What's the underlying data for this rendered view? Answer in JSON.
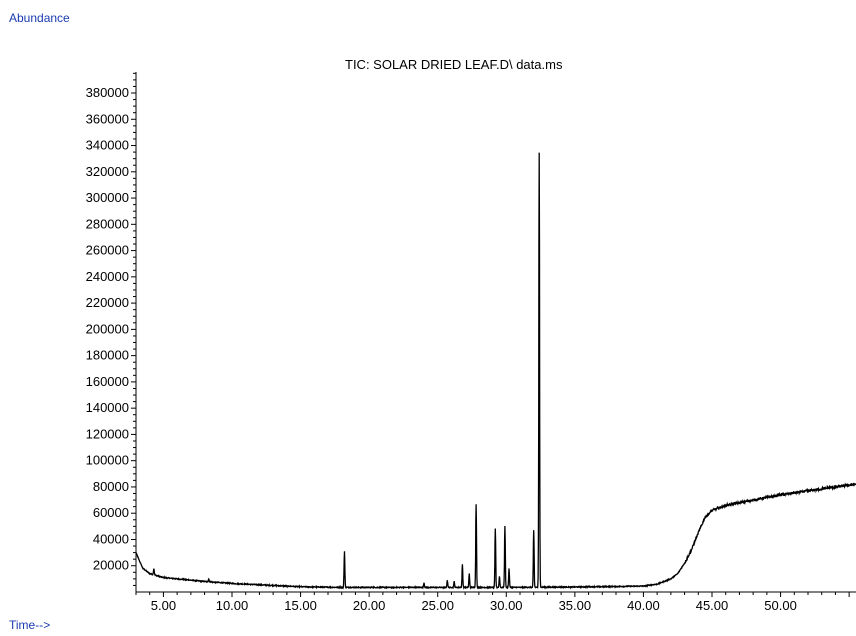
{
  "chart_data": {
    "type": "line",
    "title": "TIC: SOLAR DRIED LEAF.D\\ data.ms",
    "ylabel": "Abundance",
    "xlabel": "Time-->",
    "xlim": [
      3.0,
      55.5
    ],
    "ylim": [
      0,
      396000
    ],
    "x_ticks": [
      "5.00",
      "10.00",
      "15.00",
      "20.00",
      "25.00",
      "30.00",
      "35.00",
      "40.00",
      "45.00",
      "50.00"
    ],
    "y_ticks": [
      "20000",
      "40000",
      "60000",
      "80000",
      "100000",
      "120000",
      "140000",
      "160000",
      "180000",
      "200000",
      "220000",
      "240000",
      "260000",
      "280000",
      "300000",
      "320000",
      "340000",
      "360000",
      "380000"
    ],
    "grid": false,
    "series": [
      {
        "color": "#000000",
        "baseline": [
          [
            3.0,
            30000
          ],
          [
            3.2,
            25000
          ],
          [
            3.5,
            18000
          ],
          [
            4.0,
            14000
          ],
          [
            5.0,
            11000
          ],
          [
            6.0,
            10000
          ],
          [
            8.0,
            8000
          ],
          [
            10.0,
            6500
          ],
          [
            12.0,
            5500
          ],
          [
            15.0,
            4000
          ],
          [
            18.0,
            3500
          ],
          [
            20.0,
            3500
          ],
          [
            25.0,
            3500
          ],
          [
            30.0,
            3500
          ],
          [
            35.0,
            3800
          ],
          [
            38.0,
            4200
          ],
          [
            40.0,
            4500
          ],
          [
            41.0,
            6000
          ],
          [
            42.0,
            10000
          ],
          [
            42.5,
            14000
          ],
          [
            43.0,
            22000
          ],
          [
            43.5,
            32000
          ],
          [
            44.0,
            45000
          ],
          [
            44.5,
            57000
          ],
          [
            45.0,
            62000
          ],
          [
            46.0,
            66000
          ],
          [
            48.0,
            70000
          ],
          [
            50.0,
            74000
          ],
          [
            52.0,
            77000
          ],
          [
            54.0,
            80000
          ],
          [
            55.5,
            82000
          ]
        ],
        "peaks": [
          [
            4.3,
            18000
          ],
          [
            8.3,
            10000
          ],
          [
            18.2,
            31000
          ],
          [
            24.0,
            7000
          ],
          [
            25.7,
            9000
          ],
          [
            26.2,
            8000
          ],
          [
            26.8,
            21000
          ],
          [
            27.3,
            14000
          ],
          [
            27.8,
            67000
          ],
          [
            29.2,
            48000
          ],
          [
            29.5,
            12000
          ],
          [
            29.9,
            50000
          ],
          [
            30.2,
            18000
          ],
          [
            32.0,
            47000
          ],
          [
            32.4,
            335000
          ]
        ]
      }
    ]
  }
}
